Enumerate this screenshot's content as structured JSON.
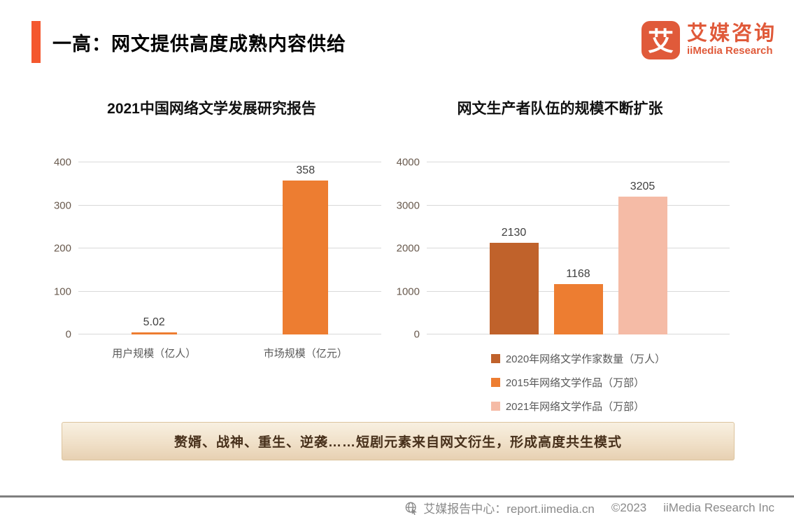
{
  "header": {
    "title": "一高：网文提供高度成熟内容供给",
    "logo": {
      "icon_char": "艾",
      "name_cn": "艾媒咨询",
      "name_en": "iiMedia Research"
    }
  },
  "chart_data": [
    {
      "type": "bar",
      "title": "2021中国网络文学发展研究报告",
      "categories": [
        "用户规模（亿人）",
        "市场规模（亿元）"
      ],
      "values": [
        5.02,
        358
      ],
      "value_labels": [
        "5.02",
        "358"
      ],
      "bar_colors": [
        "#ED7D31",
        "#ED7D31"
      ],
      "yticks": [
        0,
        100,
        200,
        300,
        400
      ],
      "ylim": [
        0,
        400
      ],
      "grid": true,
      "legend_position": "none"
    },
    {
      "type": "bar",
      "title": "网文生产者队伍的规模不断扩张",
      "categories": [
        "2020年网络文学作家数量（万人）",
        "2015年网络文学作品（万部）",
        "2021年网络文学作品（万部）"
      ],
      "values": [
        2130,
        1168,
        3205
      ],
      "value_labels": [
        "2130",
        "1168",
        "3205"
      ],
      "bar_colors": [
        "#C0622B",
        "#ED7D31",
        "#F5BBA6"
      ],
      "yticks": [
        0,
        1000,
        2000,
        3000,
        4000
      ],
      "ylim": [
        0,
        4000
      ],
      "grid": true,
      "legend_position": "bottom"
    }
  ],
  "banner": {
    "text": "赘婿、战神、重生、逆袭……短剧元素来自网文衍生，形成高度共生模式"
  },
  "footer": {
    "site_label": "艾媒报告中心：report.iimedia.cn",
    "copyright": "©2023",
    "company": "iiMedia Research  Inc"
  },
  "colors": {
    "accent": "#F4572E",
    "logo_orange": "#E05A3A",
    "bar_orange": "#ED7D31",
    "bar_brown": "#C0622B",
    "bar_pink": "#F5BBA6",
    "gridline": "#D9D9D9",
    "axis_text": "#595959",
    "banner_text": "#47301B",
    "footer_gray": "#8a8a8a"
  }
}
